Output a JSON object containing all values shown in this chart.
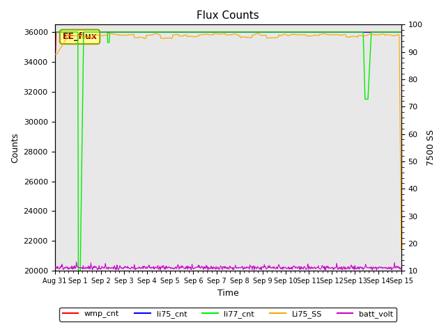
{
  "title": "Flux Counts",
  "xlabel": "Time",
  "ylabel_left": "Counts",
  "ylabel_right": "7500 SS",
  "ylim_left": [
    20000,
    36500
  ],
  "ylim_right": [
    10,
    100
  ],
  "yticks_left": [
    20000,
    22000,
    24000,
    26000,
    28000,
    30000,
    32000,
    34000,
    36000
  ],
  "yticks_right": [
    10,
    20,
    30,
    40,
    50,
    60,
    70,
    80,
    90,
    100
  ],
  "xtick_labels": [
    "Aug 31",
    "Sep 1",
    "Sep 2",
    "Sep 3",
    "Sep 4",
    "Sep 5",
    "Sep 6",
    "Sep 7",
    "Sep 8",
    "Sep 9",
    "Sep 10",
    "Sep 11",
    "Sep 12",
    "Sep 13",
    "Sep 14",
    "Sep 15"
  ],
  "bg_color": "#e8e8e8",
  "annotation_text": "EE_flux",
  "annotation_color": "#8b0000",
  "annotation_box_facecolor": "#ffff99",
  "annotation_box_edgecolor": "#999900",
  "legend_entries": [
    {
      "label": "wmp_cnt",
      "color": "#ff0000"
    },
    {
      "label": "li75_cnt",
      "color": "#0000ff"
    },
    {
      "label": "li77_cnt",
      "color": "#00ee00"
    },
    {
      "label": "Li75_SS",
      "color": "#ffa500"
    },
    {
      "label": "batt_volt",
      "color": "#cc00cc"
    }
  ]
}
